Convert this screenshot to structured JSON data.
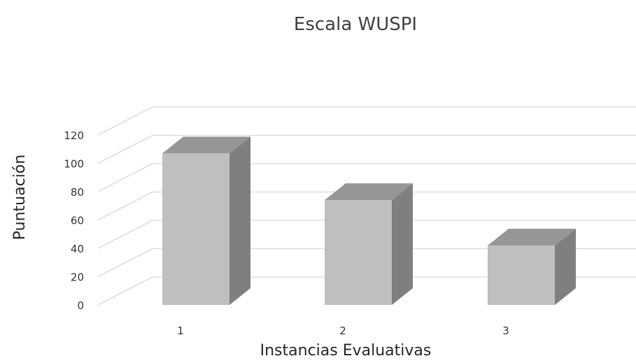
{
  "chart_data": {
    "type": "bar",
    "style": "3d-column",
    "title": "Escala WUSPI",
    "xlabel": "Instancias Evaluativas",
    "ylabel": "Puntuación",
    "categories": [
      "1",
      "2",
      "3"
    ],
    "values": [
      107,
      74,
      42
    ],
    "ylim": [
      0,
      120
    ],
    "yticks": [
      0,
      20,
      40,
      60,
      80,
      100,
      120
    ],
    "grid": true,
    "legend": "none",
    "colors": {
      "bar_front": "#bfbfbf",
      "bar_side": "#7f7f7f",
      "bar_top": "#969696",
      "gridline": "#d9d9d9"
    }
  }
}
